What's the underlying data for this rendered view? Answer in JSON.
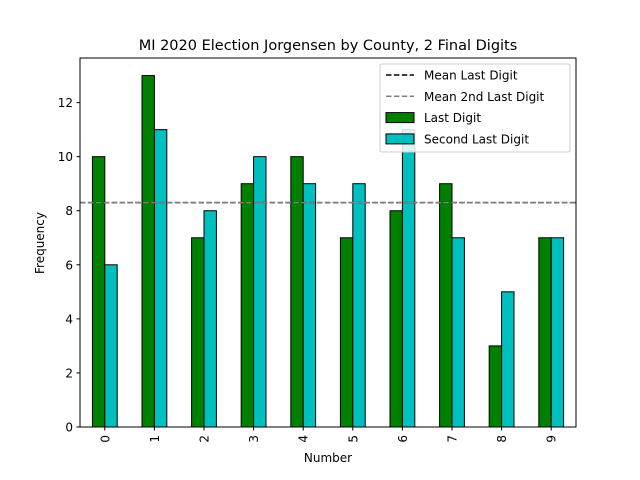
{
  "chart_data": {
    "type": "bar",
    "title": "MI 2020 Election Jorgensen by County, 2 Final Digits",
    "xlabel": "Number",
    "ylabel": "Frequency",
    "categories": [
      "0",
      "1",
      "2",
      "3",
      "4",
      "5",
      "6",
      "7",
      "8",
      "9"
    ],
    "series": [
      {
        "name": "Last Digit",
        "color": "#008000",
        "values": [
          10,
          13,
          7,
          9,
          10,
          7,
          8,
          9,
          3,
          7
        ]
      },
      {
        "name": "Second Last Digit",
        "color": "#00bfbf",
        "values": [
          6,
          11,
          8,
          10,
          9,
          9,
          11,
          7,
          5,
          7
        ]
      }
    ],
    "reference_lines": [
      {
        "name": "Mean Last Digit",
        "value": 8.3,
        "color": "#000000",
        "style": "dashed"
      },
      {
        "name": "Mean 2nd Last Digit",
        "value": 8.3,
        "color": "#808080",
        "style": "dashed"
      }
    ],
    "ylim": [
      0,
      13.65
    ],
    "yticks": [
      0,
      2,
      4,
      6,
      8,
      10,
      12
    ],
    "grid": false,
    "legend_position": "top-right"
  }
}
